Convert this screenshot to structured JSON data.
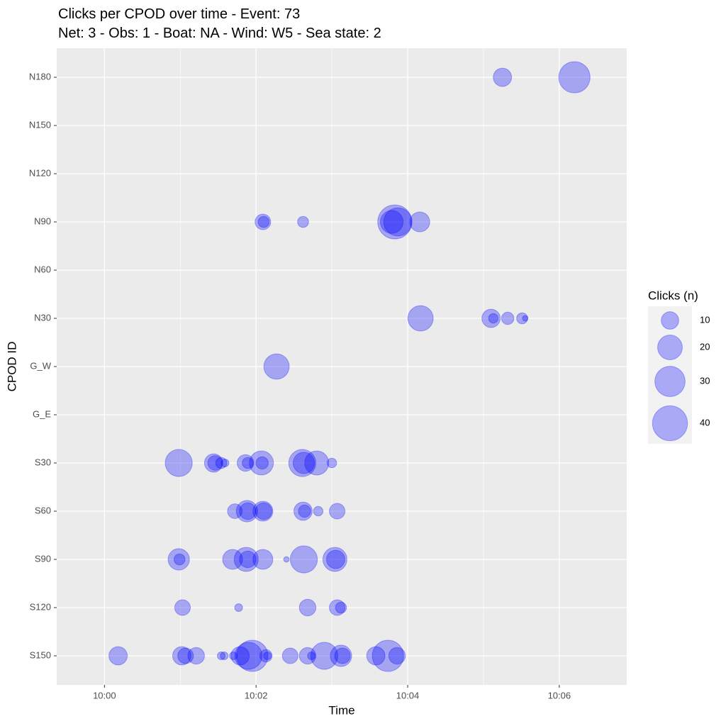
{
  "chart_data": {
    "type": "bubble",
    "title": "Clicks per CPOD over time - Event: 73",
    "subtitle": "Net: 3 - Obs: 1 - Boat: NA - Wind: W5 - Sea state: 2",
    "x_label": "Time",
    "y_label": "CPOD ID",
    "categories": [
      "S150",
      "S120",
      "S90",
      "S60",
      "S30",
      "G_E",
      "G_W",
      "N30",
      "N60",
      "N90",
      "N120",
      "N150",
      "N180"
    ],
    "xlim": [
      599.37,
      606.89
    ],
    "xticks": [
      {
        "value": 600,
        "label": "10:00"
      },
      {
        "value": 602,
        "label": "10:02"
      },
      {
        "value": 604,
        "label": "10:04"
      },
      {
        "value": 606,
        "label": "10:06"
      }
    ],
    "xminor": [
      601,
      603,
      605
    ],
    "color": "#0000ff",
    "alpha": 0.3,
    "grid": true,
    "legend": {
      "title": "Clicks (n)",
      "sizes": [
        10,
        20,
        30,
        40
      ],
      "position": "right"
    },
    "x": [
      605.25,
      606.2,
      602.09,
      602.1,
      602.62,
      603.83,
      603.79,
      603.87,
      604.16,
      604.17,
      605.1,
      605.13,
      605.32,
      605.51,
      605.55,
      602.27,
      600.98,
      601.44,
      601.46,
      601.54,
      601.59,
      601.86,
      601.89,
      602.07,
      602.08,
      602.61,
      602.63,
      602.8,
      603.0,
      601.72,
      601.88,
      601.89,
      602.09,
      602.1,
      602.62,
      602.64,
      602.82,
      603.07,
      600.98,
      600.99,
      601.69,
      601.87,
      601.89,
      602.09,
      602.4,
      602.63,
      603.04,
      603.05,
      601.03,
      601.77,
      602.68,
      603.07,
      603.12,
      600.18,
      601.02,
      601.07,
      601.21,
      601.54,
      601.58,
      601.7,
      601.79,
      601.9,
      601.95,
      602.13,
      602.15,
      602.45,
      602.68,
      602.73,
      602.9,
      603.12,
      603.14,
      603.58,
      603.74,
      603.86
    ],
    "y": [
      "N180",
      "N180",
      "N90",
      "N90",
      "N90",
      "N90",
      "N90",
      "N90",
      "N90",
      "N30",
      "N30",
      "N30",
      "N30",
      "N30",
      "N30",
      "G_W",
      "S30",
      "S30",
      "S30",
      "S30",
      "S30",
      "S30",
      "S30",
      "S30",
      "S30",
      "S30",
      "S30",
      "S30",
      "S30",
      "S60",
      "S60",
      "S60",
      "S60",
      "S60",
      "S60",
      "S60",
      "S60",
      "S60",
      "S90",
      "S90",
      "S90",
      "S90",
      "S90",
      "S90",
      "S90",
      "S90",
      "S90",
      "S90",
      "S120",
      "S120",
      "S120",
      "S120",
      "S120",
      "S150",
      "S150",
      "S150",
      "S150",
      "S150",
      "S150",
      "S150",
      "S150",
      "S150",
      "S150",
      "S150",
      "S150",
      "S150",
      "S150",
      "S150",
      "S150",
      "S150",
      "S150",
      "S150",
      "S150",
      "S150"
    ],
    "size": [
      11,
      32,
      8,
      4,
      4,
      38,
      17,
      26,
      13,
      21,
      11,
      3,
      5,
      4,
      1,
      21,
      24,
      11,
      7,
      4,
      2,
      9,
      4,
      19,
      5,
      24,
      15,
      19,
      3,
      7,
      15,
      9,
      13,
      9,
      11,
      5,
      3,
      8,
      15,
      4,
      13,
      19,
      9,
      13,
      1,
      24,
      19,
      11,
      8,
      2,
      9,
      8,
      4,
      11,
      11,
      8,
      9,
      2,
      2,
      2,
      11,
      24,
      32,
      5,
      2,
      8,
      9,
      2,
      24,
      15,
      8,
      11,
      32,
      9
    ]
  }
}
